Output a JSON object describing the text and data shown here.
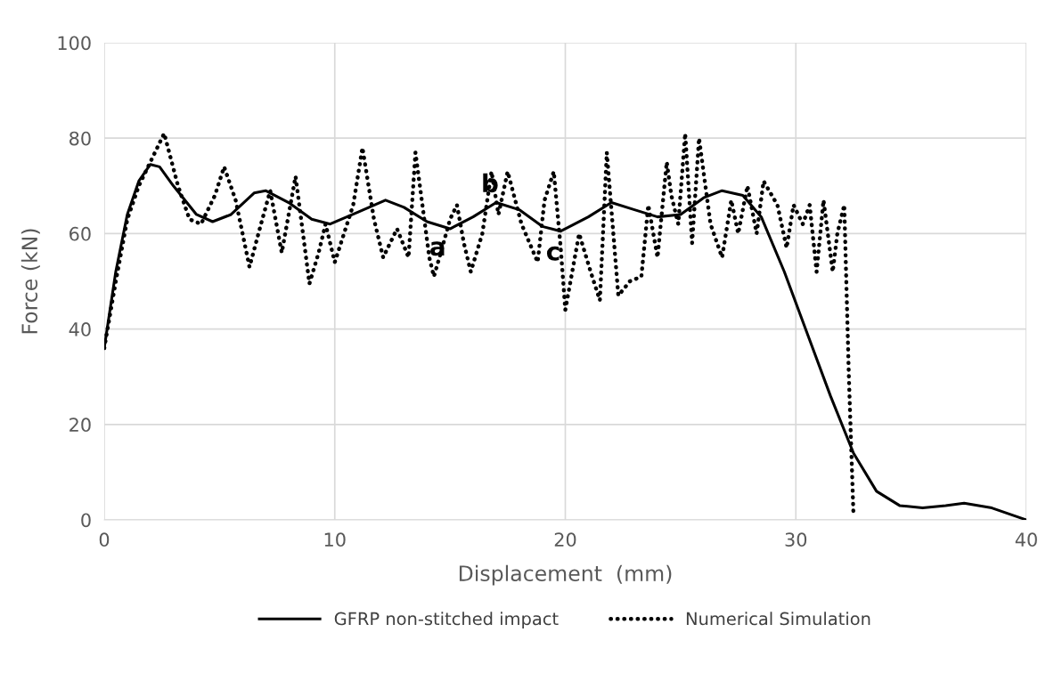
{
  "chart_data": {
    "type": "line",
    "xlabel": "Displacement  (mm)",
    "ylabel": "Force (kN)",
    "xlim": [
      0,
      40
    ],
    "xticks": [
      0,
      10,
      20,
      30,
      40
    ],
    "ylim": [
      0,
      100
    ],
    "yticks": [
      0,
      20,
      40,
      60,
      80,
      100
    ],
    "grid": true,
    "legend": "bottom",
    "annotations": [
      {
        "text": "a",
        "x": 15,
        "y": 61
      },
      {
        "text": "b",
        "x": 17,
        "y": 66.5
      },
      {
        "text": "c",
        "x": 19.8,
        "y": 60.5
      }
    ],
    "series": [
      {
        "name": "GFRP non-stitched impact",
        "color": "#000000",
        "line_style": "solid",
        "x": [
          0,
          0.5,
          1,
          1.5,
          2,
          2.4,
          3,
          4,
          4.7,
          5.5,
          6.5,
          7,
          8,
          9,
          9.8,
          11,
          12.2,
          13,
          14,
          15,
          16,
          17,
          18,
          19,
          19.8,
          21,
          22,
          23,
          24,
          25,
          26,
          26.8,
          27.7,
          28.5,
          29.5,
          30.5,
          31.5,
          32.5,
          33.5,
          34.5,
          35.5,
          36.5,
          37.3,
          38.5,
          40
        ],
        "values": [
          36,
          52,
          64,
          71,
          74.5,
          74,
          70,
          64,
          62.5,
          64,
          68.5,
          69,
          66.5,
          63,
          62,
          64.5,
          67,
          65.5,
          62.5,
          61,
          63.5,
          66.5,
          65,
          61.5,
          60.5,
          63.5,
          66.5,
          65,
          63.5,
          64,
          67.5,
          69,
          68,
          63.5,
          52,
          39,
          26,
          14,
          6,
          3,
          2.5,
          3,
          3.5,
          2.5,
          0
        ]
      },
      {
        "name": "Numerical Simulation",
        "color": "#000000",
        "line_style": "dotted",
        "x": [
          0,
          0.5,
          1,
          1.5,
          2,
          2.6,
          3.2,
          3.7,
          4.2,
          4.8,
          5.2,
          5.7,
          6.3,
          6.8,
          7.2,
          7.7,
          8.3,
          8.9,
          9.3,
          9.6,
          10,
          10.8,
          11.2,
          11.7,
          12.1,
          12.7,
          13.2,
          13.5,
          14.1,
          14.3,
          14.6,
          15,
          15.3,
          15.6,
          15.9,
          16.4,
          16.8,
          17.1,
          17.5,
          18.1,
          18.8,
          19.1,
          19.5,
          19.8,
          20,
          20.6,
          21.1,
          21.5,
          21.8,
          22.3,
          22.8,
          23.3,
          23.6,
          24,
          24.4,
          24.6,
          24.9,
          25.2,
          25.5,
          25.8,
          26.3,
          26.8,
          27.2,
          27.5,
          27.9,
          28.3,
          28.6,
          29.2,
          29.6,
          29.9,
          30.3,
          30.6,
          30.9,
          31.2,
          31.6,
          31.8,
          32.1,
          32.3,
          32.5
        ],
        "values": [
          36,
          50,
          63,
          70,
          75,
          81,
          70,
          63,
          62,
          68,
          74,
          67,
          53,
          62,
          69,
          56,
          72,
          49.5,
          56,
          62,
          54,
          66,
          78,
          63,
          55,
          61,
          55,
          77,
          55,
          51,
          56,
          63,
          66,
          58,
          52,
          60,
          73,
          64,
          73,
          62,
          54,
          67,
          73,
          57,
          44,
          60,
          52,
          46,
          77,
          47,
          50,
          51,
          66,
          55,
          75,
          68,
          62,
          81,
          58,
          80,
          62,
          55,
          67,
          60,
          70,
          60,
          71,
          66,
          57,
          66,
          62,
          66,
          52,
          67,
          52,
          60,
          66,
          30,
          1
        ]
      }
    ]
  }
}
